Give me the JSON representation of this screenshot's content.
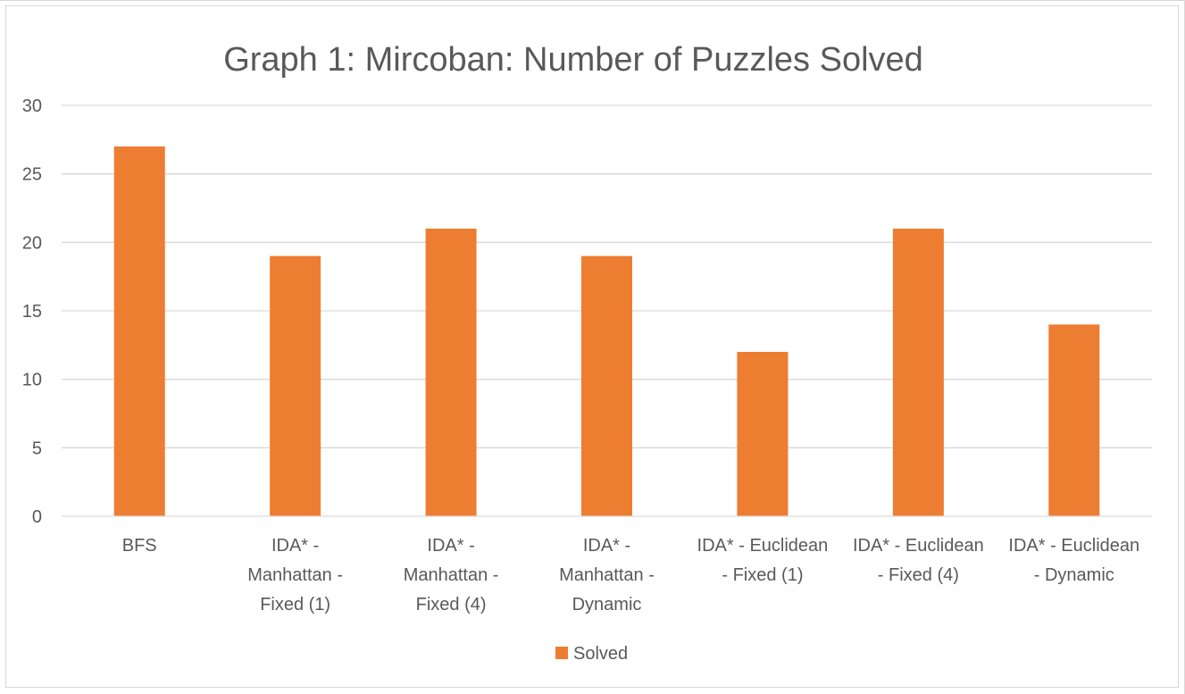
{
  "chart_data": {
    "type": "bar",
    "title": "Graph 1: Mircoban: Number of Puzzles Solved",
    "categories": [
      [
        "BFS"
      ],
      [
        "IDA* -",
        "Manhattan -",
        "Fixed (1)"
      ],
      [
        "IDA* -",
        "Manhattan -",
        "Fixed (4)"
      ],
      [
        "IDA* -",
        "Manhattan -",
        "Dynamic"
      ],
      [
        "IDA* - Euclidean",
        "- Fixed (1)"
      ],
      [
        "IDA* - Euclidean",
        "- Fixed (4)"
      ],
      [
        "IDA* - Euclidean",
        "- Dynamic"
      ]
    ],
    "series": [
      {
        "name": "Solved",
        "values": [
          27,
          19,
          21,
          19,
          12,
          21,
          14
        ],
        "color": "#ED7D31"
      }
    ],
    "ylim": [
      0,
      30
    ],
    "yticks": [
      0,
      5,
      10,
      15,
      20,
      25,
      30
    ],
    "xlabel": "",
    "ylabel": "",
    "grid": true,
    "legend": "bottom",
    "colors": {
      "bar": "#ED7D31",
      "grid": "#d9d9d9",
      "text": "#595959"
    }
  }
}
